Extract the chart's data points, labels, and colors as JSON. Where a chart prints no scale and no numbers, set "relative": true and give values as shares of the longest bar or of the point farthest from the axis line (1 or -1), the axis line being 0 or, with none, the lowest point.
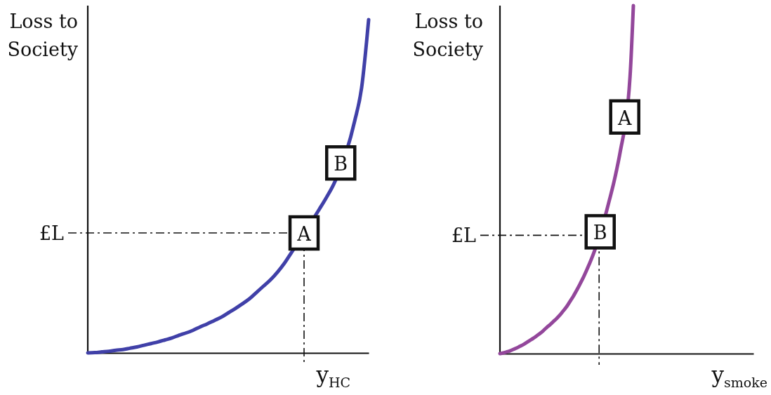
{
  "chart_data": [
    {
      "type": "line",
      "relative": true,
      "ylabel": "Loss to Society",
      "xlabel": "y$_{HC}$",
      "categories": [
        null,
        null,
        null,
        null,
        null,
        null,
        null,
        null,
        null,
        null,
        null,
        null,
        null,
        null,
        null,
        null,
        null,
        null,
        null,
        null,
        null,
        null,
        null,
        null,
        null,
        null,
        null,
        null,
        null,
        null,
        null,
        null,
        null,
        null,
        null,
        null,
        null,
        null,
        null,
        null,
        null
      ],
      "series": [
        {
          "color": "#4040a8",
          "values": [
            0,
            0.001,
            0.003,
            0.005,
            0.008,
            0.01,
            0.014,
            0.018,
            0.023,
            0.028,
            0.033,
            0.039,
            0.045,
            0.053,
            0.06,
            0.068,
            0.078,
            0.087,
            0.097,
            0.107,
            0.12,
            0.133,
            0.147,
            0.162,
            0.181,
            0.2,
            0.219,
            0.242,
            0.269,
            0.301,
            null,
            null,
            null,
            0.432,
            0.467,
            0.505,
            null,
            null,
            0.695,
            0.796,
            1
          ]
        }
      ],
      "ref_lines": [
        {
          "axis": "y",
          "value": 0.36,
          "label": "£L",
          "line_style": "dashed"
        }
      ],
      "annotations": [
        {
          "text": "A",
          "y": 0.36
        },
        {
          "text": "B",
          "y": 0.57
        }
      ]
    },
    {
      "type": "line",
      "relative": true,
      "ylabel": "Loss to Society",
      "xlabel": "y$_{smoke}$",
      "categories": [
        null,
        null,
        null,
        null,
        null,
        null,
        null,
        null,
        null,
        null,
        null,
        null,
        null,
        null,
        null,
        null,
        null,
        null,
        null,
        null,
        null,
        null,
        null,
        null,
        null,
        null,
        null,
        null,
        null,
        null,
        null,
        null,
        null,
        null,
        null,
        null,
        null,
        null,
        null,
        null,
        null,
        null,
        null,
        null,
        null,
        null,
        null,
        null,
        null,
        null,
        null,
        null,
        null,
        null,
        null,
        null,
        null,
        null,
        null,
        null,
        null,
        null,
        null,
        null,
        null,
        null,
        null,
        null,
        null,
        null,
        null,
        null,
        null,
        null,
        null,
        null,
        null
      ],
      "series": [
        {
          "color": "#93479b",
          "values": [
            0,
            0.002,
            0.005,
            0.008,
            0.012,
            0.016,
            0.021,
            0.026,
            0.032,
            0.038,
            0.044,
            0.051,
            0.058,
            0.066,
            0.075,
            0.083,
            0.092,
            0.101,
            0.111,
            0.123,
            0.135,
            0.15,
            0.165,
            0.182,
            0.2,
            0.219,
            0.24,
            0.262,
            0.286,
            null,
            null,
            null,
            0.411,
            0.448,
            0.486,
            0.529,
            0.577,
            null,
            null,
            0.796,
            1,
            null,
            null,
            null,
            null,
            null,
            null,
            null,
            null,
            null,
            null,
            null,
            null,
            null,
            null,
            null,
            null,
            null,
            null,
            null,
            null,
            null,
            null,
            null,
            null,
            null,
            null,
            null,
            null,
            null,
            null,
            null,
            null,
            null,
            null,
            null,
            null
          ]
        }
      ],
      "ref_lines": [
        {
          "axis": "y",
          "value": 0.34,
          "label": "£L",
          "line_style": "dashed"
        }
      ],
      "annotations": [
        {
          "text": "A",
          "y": 0.68
        },
        {
          "text": "B",
          "y": 0.35
        }
      ]
    }
  ]
}
